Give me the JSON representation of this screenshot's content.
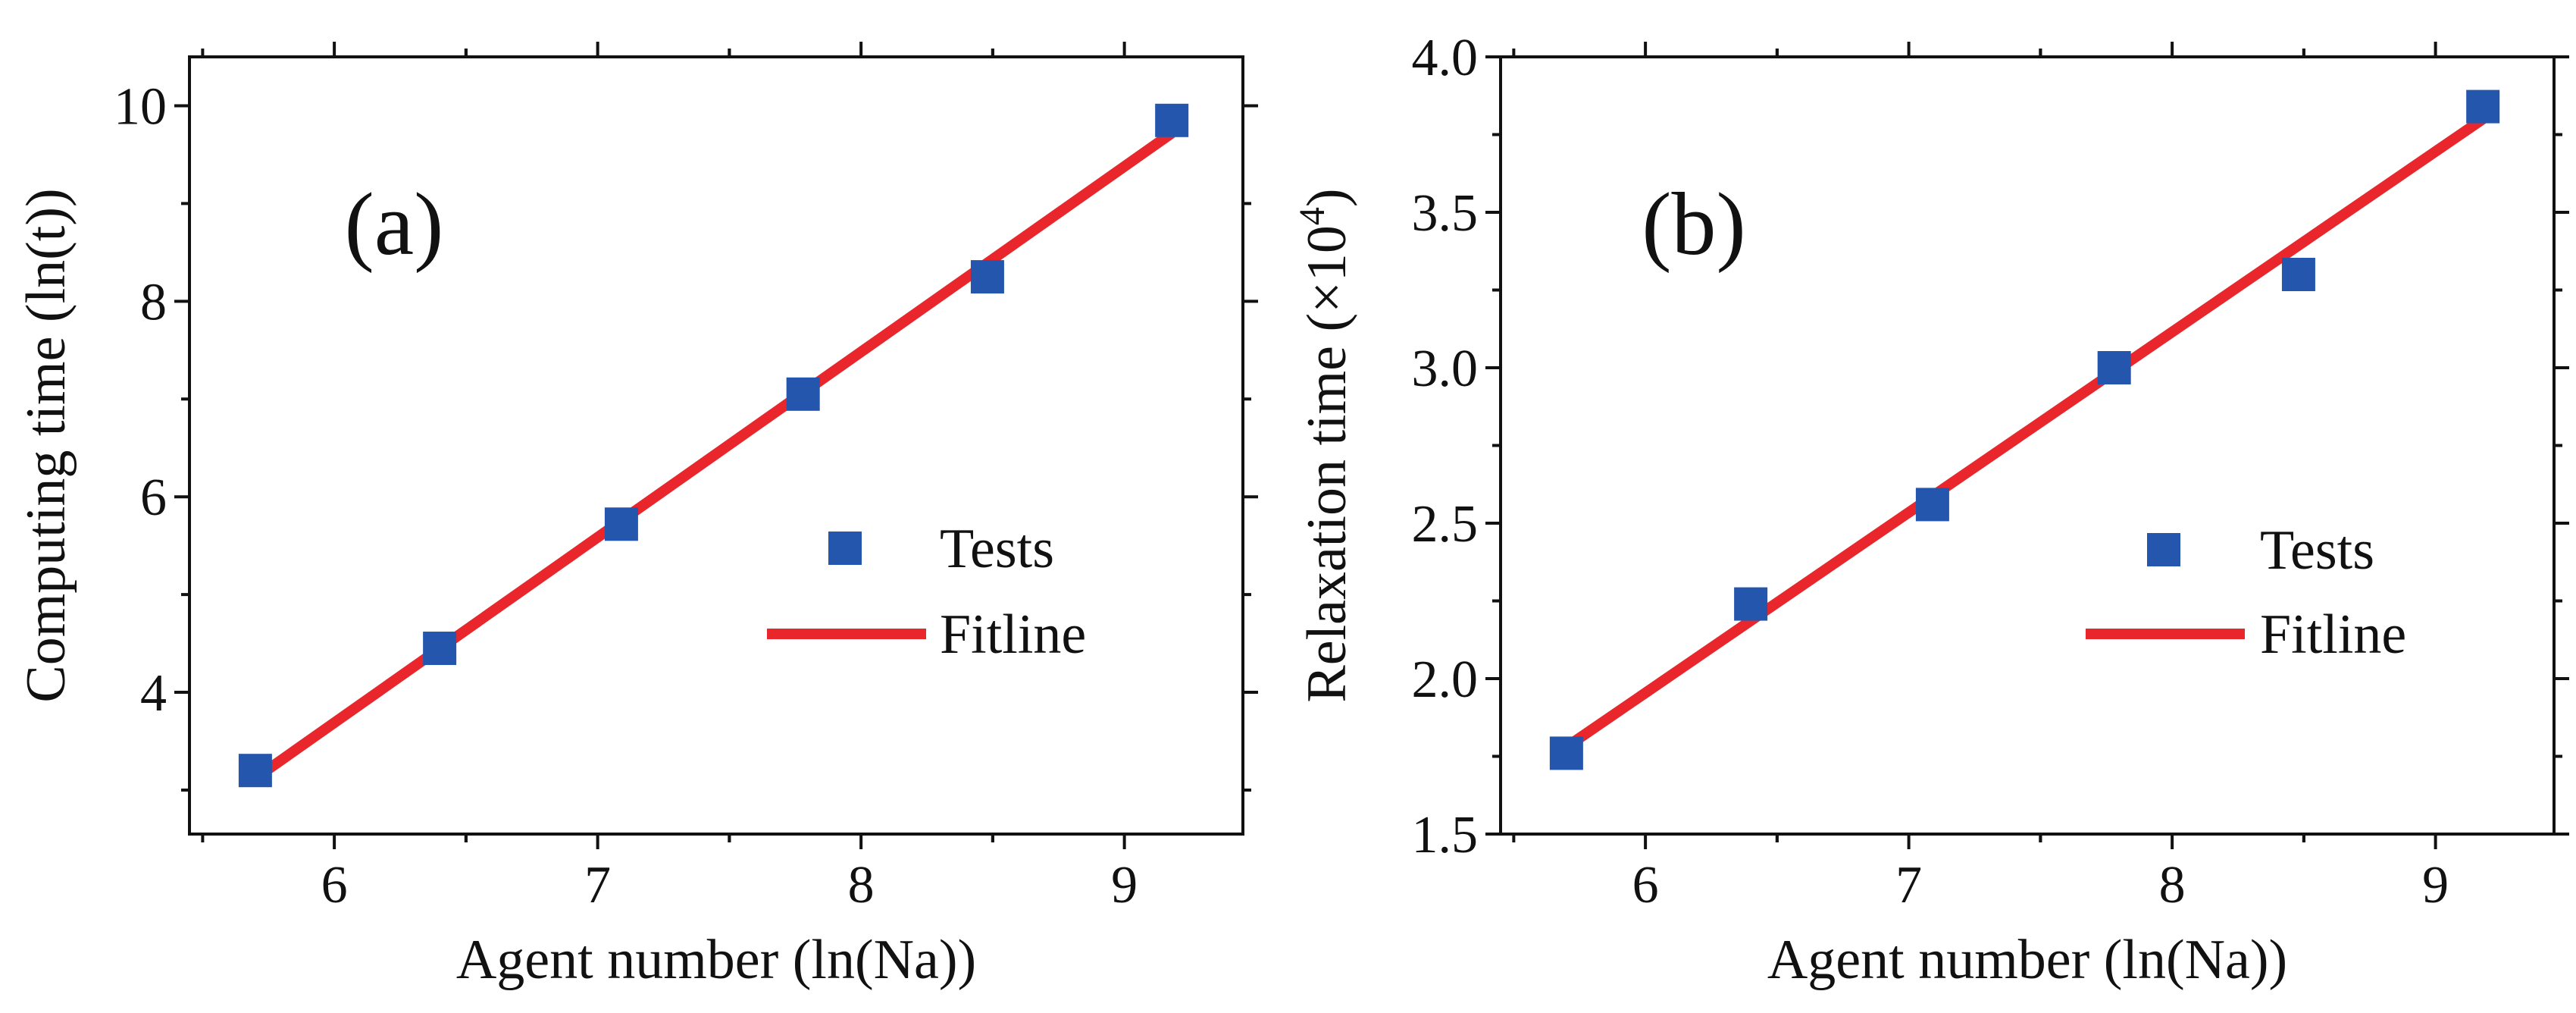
{
  "colors": {
    "tests": "#2456AD",
    "fitline": "#E8262C",
    "axis": "#111111"
  },
  "chart_data": [
    {
      "type": "scatter",
      "panel_label": "(a)",
      "xlabel": "Agent number (ln(Na))",
      "ylabel": "Computing time (ln(t))",
      "ylabel_exp": "",
      "ylabel_close": "",
      "xlim": [
        5.45,
        9.45
      ],
      "ylim": [
        2.55,
        10.5
      ],
      "x_ticks": [
        6,
        7,
        8,
        9
      ],
      "x_tick_labels": [
        "6",
        "7",
        "8",
        "9"
      ],
      "y_ticks": [
        4,
        6,
        8,
        10
      ],
      "y_tick_labels": [
        "4",
        "6",
        "8",
        "10"
      ],
      "y_minor_ticks": [
        3,
        5,
        7,
        9
      ],
      "legend_position": "right",
      "series": [
        {
          "name": "Tests",
          "kind": "points",
          "marker": "square",
          "x": [
            5.7,
            6.4,
            7.09,
            7.78,
            8.48,
            9.18
          ],
          "y": [
            3.2,
            4.45,
            5.72,
            7.05,
            8.25,
            9.85
          ]
        },
        {
          "name": "Fitline",
          "kind": "line",
          "x": [
            5.7,
            9.18
          ],
          "y": [
            3.12,
            9.72
          ]
        }
      ]
    },
    {
      "type": "scatter",
      "panel_label": "(b)",
      "xlabel": "Agent number (ln(Na))",
      "ylabel": "Relaxation time (×10",
      "ylabel_exp": "4",
      "ylabel_close": ")",
      "xlim": [
        5.45,
        9.45
      ],
      "ylim": [
        1.5,
        4.0
      ],
      "x_ticks": [
        6,
        7,
        8,
        9
      ],
      "x_tick_labels": [
        "6",
        "7",
        "8",
        "9"
      ],
      "y_ticks": [
        1.5,
        2.0,
        2.5,
        3.0,
        3.5,
        4.0
      ],
      "y_tick_labels": [
        "1.5",
        "2.0",
        "2.5",
        "3.0",
        "3.5",
        "4.0"
      ],
      "y_minor_ticks": [
        1.75,
        2.25,
        2.75,
        3.25,
        3.75
      ],
      "legend_position": "right",
      "series": [
        {
          "name": "Tests",
          "kind": "points",
          "marker": "square",
          "x": [
            5.7,
            6.4,
            7.09,
            7.78,
            8.48,
            9.18
          ],
          "y": [
            1.76,
            2.24,
            2.56,
            3.0,
            3.3,
            3.84
          ]
        },
        {
          "name": "Fitline",
          "kind": "line",
          "x": [
            5.7,
            9.18
          ],
          "y": [
            1.78,
            3.8
          ]
        }
      ]
    }
  ]
}
